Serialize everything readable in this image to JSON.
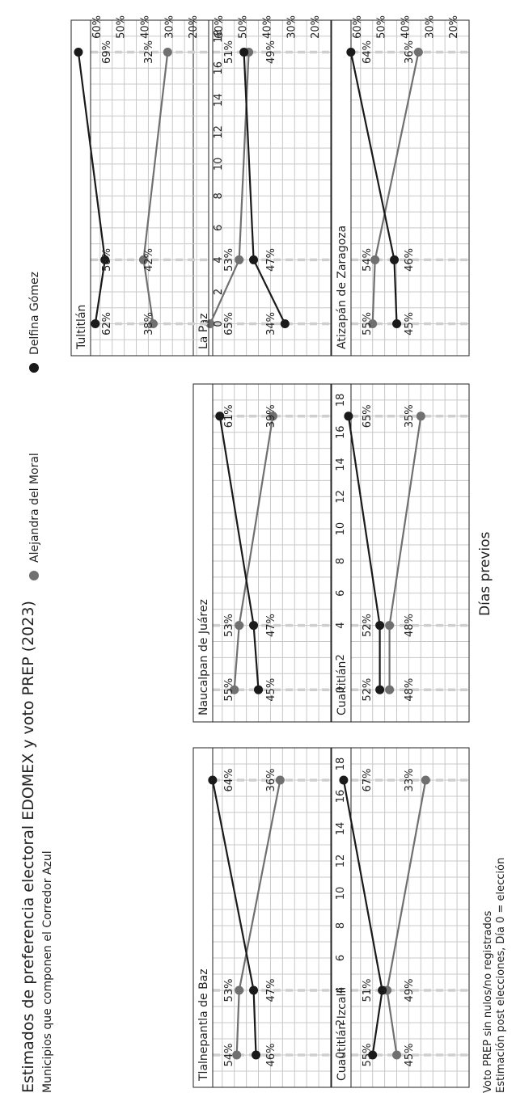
{
  "title": "Estimados de preferencia electoral EDOMEX y voto PREP (2023)",
  "subtitle": "Municipios que componen el Corredor Azul",
  "xlabel": "Días previos",
  "caption": [
    "Voto PREP sin nulos/no registrados",
    "Estimación post elecciones, Día 0 = elección"
  ],
  "chart_data": {
    "type": "line",
    "facet_by": "municipio",
    "x": [
      17,
      4,
      0
    ],
    "x_ticks": [
      18,
      16,
      14,
      12,
      10,
      8,
      6,
      4,
      2,
      0
    ],
    "x_range": [
      19,
      -2
    ],
    "y_ticks": [
      "60%",
      "50%",
      "40%",
      "30%",
      "20%"
    ],
    "y_tick_values": [
      60,
      50,
      40,
      30,
      20
    ],
    "y_range": [
      15,
      72
    ],
    "reference_days": [
      17,
      4,
      0
    ],
    "grid": true,
    "legend_position": "top",
    "series_styles": [
      {
        "name": "Alejandra del Moral",
        "color": "#707070"
      },
      {
        "name": "Delfina Gómez",
        "color": "#1a1a1a"
      }
    ],
    "panels": [
      {
        "name": "Atizapán de Zaragoza",
        "series": [
          {
            "name": "Alejandra del Moral",
            "values": [
              36,
              54,
              55
            ],
            "labels": [
              "36%",
              "54%",
              "55%"
            ]
          },
          {
            "name": "Delfina Gómez",
            "values": [
              64,
              46,
              45
            ],
            "labels": [
              "64%",
              "46%",
              "45%"
            ]
          }
        ]
      },
      {
        "name": "Cuaititlán",
        "series": [
          {
            "name": "Alejandra del Moral",
            "values": [
              35,
              48,
              48
            ],
            "labels": [
              "35%",
              "48%",
              "48%"
            ]
          },
          {
            "name": "Delfina Gómez",
            "values": [
              65,
              52,
              52
            ],
            "labels": [
              "65%",
              "52%",
              "52%"
            ]
          }
        ]
      },
      {
        "name": "Cuautitlán Izcalli",
        "series": [
          {
            "name": "Alejandra del Moral",
            "values": [
              33,
              49,
              45
            ],
            "labels": [
              "33%",
              "49%",
              "45%"
            ]
          },
          {
            "name": "Delfina Gómez",
            "values": [
              67,
              51,
              55
            ],
            "labels": [
              "67%",
              "51%",
              "55%"
            ]
          }
        ]
      },
      {
        "name": "La Paz",
        "series": [
          {
            "name": "Alejandra del Moral",
            "values": [
              49,
              53,
              65
            ],
            "labels": [
              "49%",
              "53%",
              "65%"
            ]
          },
          {
            "name": "Delfina Gómez",
            "values": [
              51,
              47,
              34
            ],
            "labels": [
              "51%",
              "47%",
              "34%"
            ]
          }
        ]
      },
      {
        "name": "Naucalpan de Juárez",
        "series": [
          {
            "name": "Alejandra del Moral",
            "values": [
              39,
              53,
              55
            ],
            "labels": [
              "39%",
              "53%",
              "55%"
            ]
          },
          {
            "name": "Delfina Gómez",
            "values": [
              61,
              47,
              45
            ],
            "labels": [
              "61%",
              "47%",
              "45%"
            ]
          }
        ]
      },
      {
        "name": "Tlalnepantla de Baz",
        "series": [
          {
            "name": "Alejandra del Moral",
            "values": [
              36,
              53,
              54
            ],
            "labels": [
              "36%",
              "53%",
              "54%"
            ]
          },
          {
            "name": "Delfina Gómez",
            "values": [
              64,
              47,
              46
            ],
            "labels": [
              "64%",
              "47%",
              "46%"
            ]
          }
        ]
      },
      {
        "name": "Tultitlán",
        "series": [
          {
            "name": "Alejandra del Moral",
            "values": [
              32,
              42,
              38
            ],
            "labels": [
              "32%",
              "42%",
              "38%"
            ]
          },
          {
            "name": "Delfina Gómez",
            "values": [
              69,
              58,
              62
            ],
            "labels": [
              "69%",
              "58%",
              "62%"
            ]
          }
        ]
      }
    ]
  }
}
